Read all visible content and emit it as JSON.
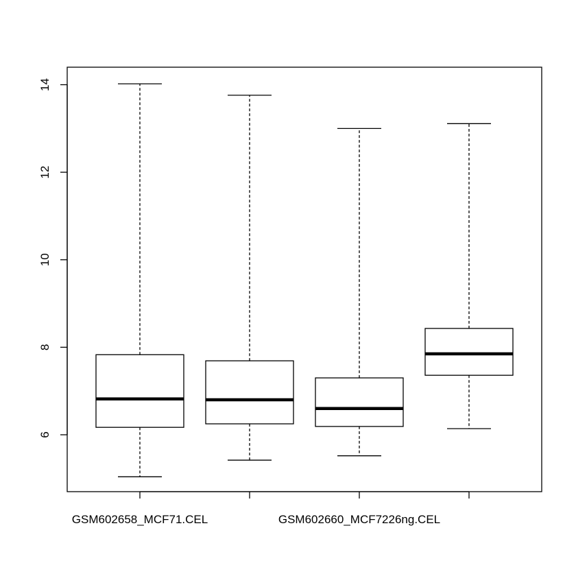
{
  "chart_data": {
    "type": "boxplot",
    "title": "",
    "xlabel": "",
    "ylabel": "",
    "ylim": [
      4.7,
      14.4
    ],
    "y_ticks": [
      6,
      8,
      10,
      12,
      14
    ],
    "y_tick_labels": [
      "6",
      "8",
      "10",
      "12",
      "14"
    ],
    "categories": [
      "GSM602658_MCF71.CEL",
      "",
      "GSM602660_MCF7226ng.CEL",
      ""
    ],
    "boxes": [
      {
        "whisker_low": 5.04,
        "q1": 6.17,
        "median": 6.82,
        "q3": 7.83,
        "whisker_high": 14.02
      },
      {
        "whisker_low": 5.42,
        "q1": 6.25,
        "median": 6.8,
        "q3": 7.69,
        "whisker_high": 13.76
      },
      {
        "whisker_low": 5.52,
        "q1": 6.19,
        "median": 6.6,
        "q3": 7.3,
        "whisker_high": 13.0
      },
      {
        "whisker_low": 6.14,
        "q1": 7.36,
        "median": 7.85,
        "q3": 8.43,
        "whisker_high": 13.11
      }
    ],
    "grid": false,
    "legend": "none"
  }
}
